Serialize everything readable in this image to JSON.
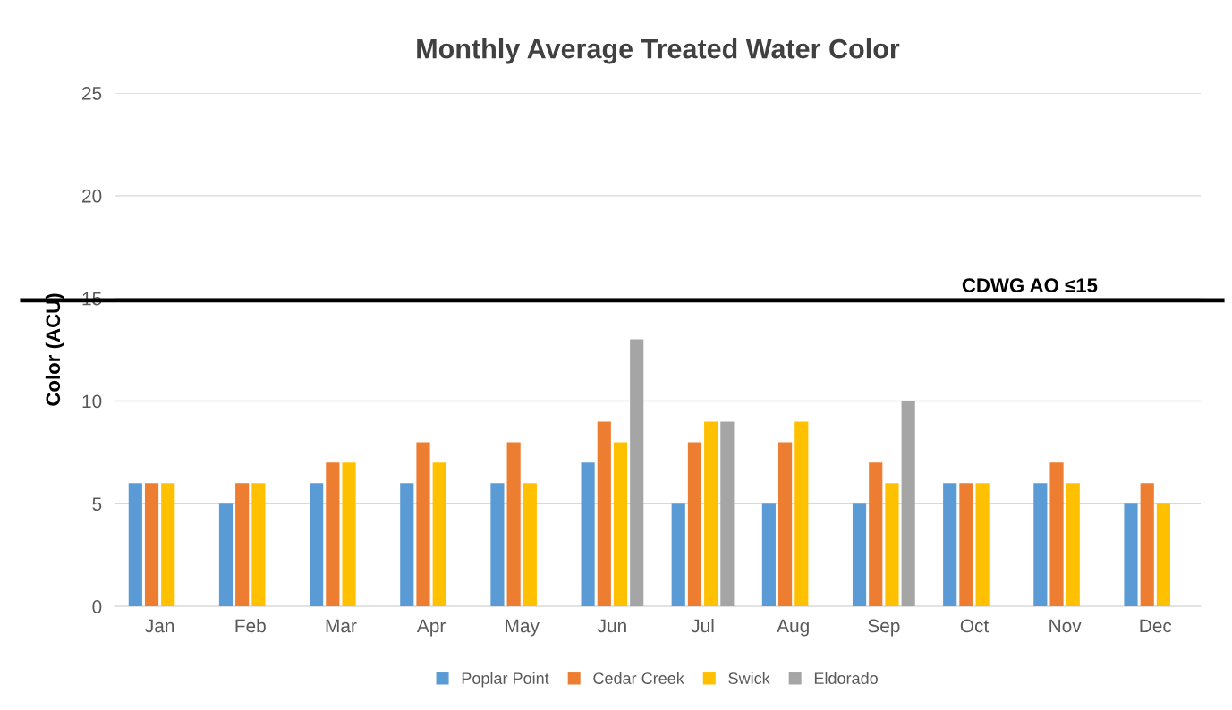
{
  "chart_data": {
    "type": "bar",
    "title": "Monthly Average Treated Water Color",
    "ylabel": "Color (ACU)",
    "categories": [
      "Jan",
      "Feb",
      "Mar",
      "Apr",
      "May",
      "Jun",
      "Jul",
      "Aug",
      "Sep",
      "Oct",
      "Nov",
      "Dec"
    ],
    "series": [
      {
        "name": "Poplar Point",
        "color": "#5b9bd5",
        "values": [
          6,
          5,
          6,
          6,
          6,
          7,
          5,
          5,
          5,
          6,
          6,
          5
        ]
      },
      {
        "name": "Cedar Creek",
        "color": "#ed7d31",
        "values": [
          6,
          6,
          7,
          8,
          8,
          9,
          8,
          8,
          7,
          6,
          7,
          6
        ]
      },
      {
        "name": "Swick",
        "color": "#ffc000",
        "values": [
          6,
          6,
          7,
          7,
          6,
          8,
          9,
          9,
          6,
          6,
          6,
          5
        ]
      },
      {
        "name": "Eldorado",
        "color": "#a5a5a5",
        "values": [
          null,
          null,
          null,
          null,
          null,
          13,
          9,
          null,
          10,
          null,
          null,
          null
        ]
      }
    ],
    "ylim": [
      0,
      25
    ],
    "yticks": [
      0,
      5,
      10,
      15,
      20,
      25
    ],
    "grid": "y",
    "legend": "bottom",
    "ref_lines": [
      {
        "axis": "y",
        "value": 14.9,
        "label": "CDWG AO ≤15",
        "color": "#000000",
        "line_style": "solid"
      }
    ]
  }
}
